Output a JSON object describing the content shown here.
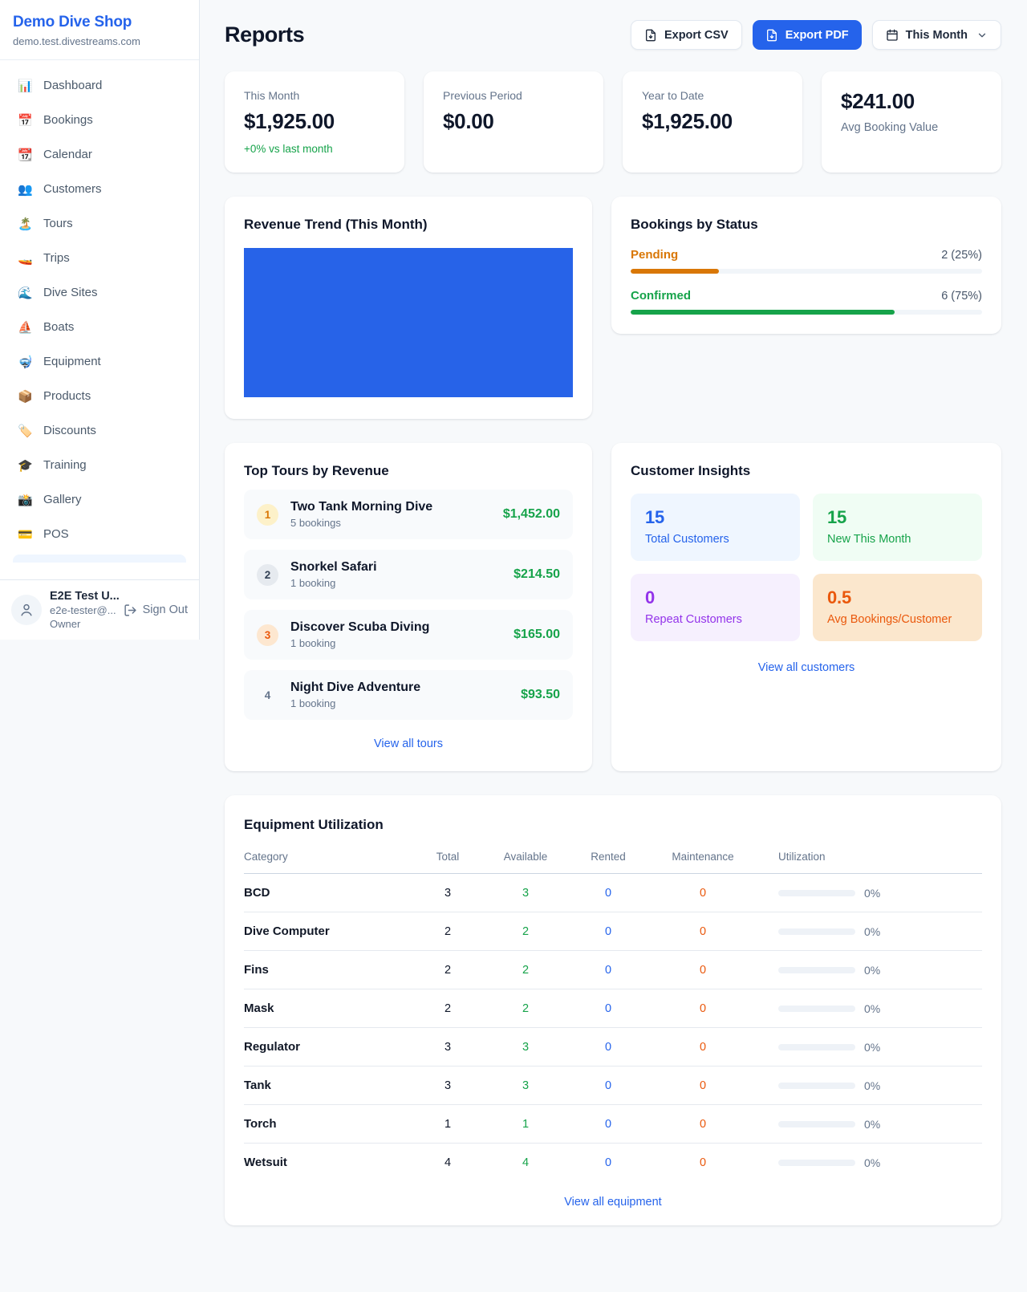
{
  "colors": {
    "accent": "#2563eb",
    "green": "#16a34a",
    "amber": "#d97706",
    "orange": "#ea580c",
    "purple": "#9333ea"
  },
  "sidebar": {
    "shop_name": "Demo Dive Shop",
    "shop_domain": "demo.test.divestreams.com",
    "nav": [
      {
        "name": "dashboard",
        "glyph": "📊",
        "label": "Dashboard"
      },
      {
        "name": "bookings",
        "glyph": "📅",
        "label": "Bookings"
      },
      {
        "name": "calendar",
        "glyph": "📆",
        "label": "Calendar"
      },
      {
        "name": "customers",
        "glyph": "👥",
        "label": "Customers"
      },
      {
        "name": "tours",
        "glyph": "🏝️",
        "label": "Tours"
      },
      {
        "name": "trips",
        "glyph": "🚤",
        "label": "Trips"
      },
      {
        "name": "dive-sites",
        "glyph": "🌊",
        "label": "Dive Sites"
      },
      {
        "name": "boats",
        "glyph": "⛵",
        "label": "Boats"
      },
      {
        "name": "equipment",
        "glyph": "🤿",
        "label": "Equipment"
      },
      {
        "name": "products",
        "glyph": "📦",
        "label": "Products"
      },
      {
        "name": "discounts",
        "glyph": "🏷️",
        "label": "Discounts"
      },
      {
        "name": "training",
        "glyph": "🎓",
        "label": "Training"
      },
      {
        "name": "gallery",
        "glyph": "📸",
        "label": "Gallery"
      },
      {
        "name": "pos",
        "glyph": "💳",
        "label": "POS"
      }
    ],
    "user": {
      "name": "E2E Test U...",
      "email": "e2e-tester@...",
      "role": "Owner",
      "sign_out_label": "Sign Out"
    }
  },
  "header": {
    "title": "Reports",
    "export_csv_label": "Export CSV",
    "export_pdf_label": "Export PDF",
    "period_label": "This Month"
  },
  "stat_cards": [
    {
      "label": "This Month",
      "value": "$1,925.00",
      "delta": "+0% vs last month"
    },
    {
      "label": "Previous Period",
      "value": "$0.00"
    },
    {
      "label": "Year to Date",
      "value": "$1,925.00"
    },
    {
      "label": "Avg Booking Value",
      "value": "$241.00"
    }
  ],
  "revenue_trend": {
    "title": "Revenue Trend (This Month)"
  },
  "bookings_by_status": {
    "title": "Bookings by Status",
    "statuses": [
      {
        "label": "Pending",
        "count_pct": "2 (25%)",
        "pct": 25
      },
      {
        "label": "Confirmed",
        "count_pct": "6 (75%)",
        "pct": 75
      }
    ]
  },
  "top_tours": {
    "title": "Top Tours by Revenue",
    "rows": [
      {
        "rank": "1",
        "name": "Two Tank Morning Dive",
        "bookings": "5 bookings",
        "revenue": "$1,452.00"
      },
      {
        "rank": "2",
        "name": "Snorkel Safari",
        "bookings": "1 booking",
        "revenue": "$214.50"
      },
      {
        "rank": "3",
        "name": "Discover Scuba Diving",
        "bookings": "1 booking",
        "revenue": "$165.00"
      },
      {
        "rank": "4",
        "name": "Night Dive Adventure",
        "bookings": "1 booking",
        "revenue": "$93.50"
      }
    ],
    "view_all": "View all tours"
  },
  "customer_insights": {
    "title": "Customer Insights",
    "tiles": [
      {
        "value": "15",
        "label": "Total Customers"
      },
      {
        "value": "15",
        "label": "New This Month"
      },
      {
        "value": "0",
        "label": "Repeat Customers"
      },
      {
        "value": "0.5",
        "label": "Avg Bookings/Customer"
      }
    ],
    "view_all": "View all customers"
  },
  "equipment_utilization": {
    "title": "Equipment Utilization",
    "columns": [
      "Category",
      "Total",
      "Available",
      "Rented",
      "Maintenance",
      "Utilization"
    ],
    "rows": [
      {
        "category": "BCD",
        "total": "3",
        "available": "3",
        "rented": "0",
        "maintenance": "0",
        "utilization": "0%"
      },
      {
        "category": "Dive Computer",
        "total": "2",
        "available": "2",
        "rented": "0",
        "maintenance": "0",
        "utilization": "0%"
      },
      {
        "category": "Fins",
        "total": "2",
        "available": "2",
        "rented": "0",
        "maintenance": "0",
        "utilization": "0%"
      },
      {
        "category": "Mask",
        "total": "2",
        "available": "2",
        "rented": "0",
        "maintenance": "0",
        "utilization": "0%"
      },
      {
        "category": "Regulator",
        "total": "3",
        "available": "3",
        "rented": "0",
        "maintenance": "0",
        "utilization": "0%"
      },
      {
        "category": "Tank",
        "total": "3",
        "available": "3",
        "rented": "0",
        "maintenance": "0",
        "utilization": "0%"
      },
      {
        "category": "Torch",
        "total": "1",
        "available": "1",
        "rented": "0",
        "maintenance": "0",
        "utilization": "0%"
      },
      {
        "category": "Wetsuit",
        "total": "4",
        "available": "4",
        "rented": "0",
        "maintenance": "0",
        "utilization": "0%"
      }
    ],
    "view_all": "View all equipment"
  }
}
